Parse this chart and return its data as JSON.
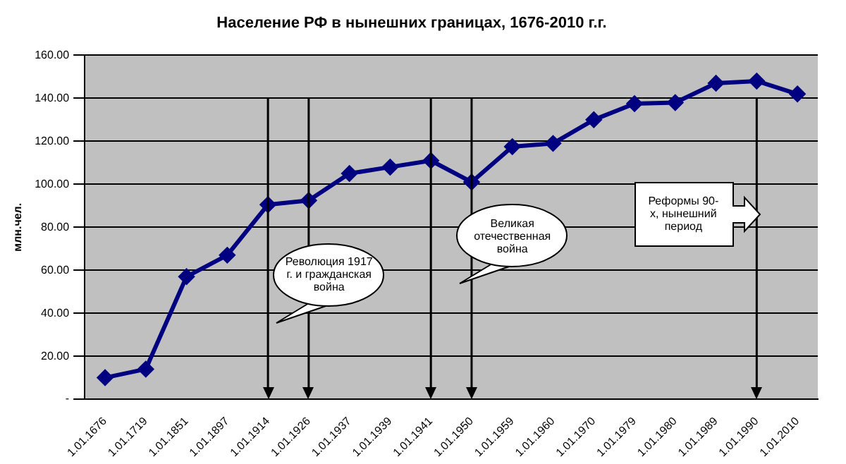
{
  "chart_data": {
    "type": "line",
    "title": "Население РФ в нынешних границах, 1676-2010 г.г.",
    "ylabel": "млн.чел.",
    "categories": [
      "1.01.1676",
      "1.01.1719",
      "1.01.1851",
      "1.01.1897",
      "1.01.1914",
      "1.01.1926",
      "1.01.1937",
      "1.01.1939",
      "1.01.1941",
      "1.01.1950",
      "1.01.1959",
      "1.01.1960",
      "1.01.1970",
      "1.01.1979",
      "1.01.1980",
      "1.01.1989",
      "1.01.1990",
      "1.01.2010"
    ],
    "series": [
      {
        "color": "#000080",
        "values": [
          10,
          14,
          57,
          67,
          90.5,
          92.5,
          105,
          108,
          111,
          101,
          117.5,
          119,
          130,
          137.5,
          138,
          147,
          148,
          142
        ]
      }
    ],
    "ylim": [
      0,
      160
    ],
    "yticks": [
      {
        "value": 0,
        "label": "-"
      },
      {
        "value": 20,
        "label": "20.00"
      },
      {
        "value": 40,
        "label": "40.00"
      },
      {
        "value": 60,
        "label": "60.00"
      },
      {
        "value": 80,
        "label": "80.00"
      },
      {
        "value": 100,
        "label": "100.00"
      },
      {
        "value": 120,
        "label": "120.00"
      },
      {
        "value": 140,
        "label": "140.00"
      },
      {
        "value": 160,
        "label": "160.00"
      }
    ],
    "grid": "y",
    "legend": false,
    "marker": "diamond",
    "line_style": "solid",
    "ref_lines": [
      {
        "axis": "x",
        "value": "1.01.1914",
        "color": "#000000"
      },
      {
        "axis": "x",
        "value": "1.01.1926",
        "color": "#000000"
      },
      {
        "axis": "x",
        "value": "1.01.1941",
        "color": "#000000"
      },
      {
        "axis": "x",
        "value": "1.01.1950",
        "color": "#000000"
      },
      {
        "axis": "x",
        "value": "1.01.1990",
        "color": "#000000"
      }
    ],
    "annotations": [
      "Революция 1917 г. и гражданская война",
      "Великая отечественная война",
      "Реформы 90-х, нынешний период"
    ]
  }
}
